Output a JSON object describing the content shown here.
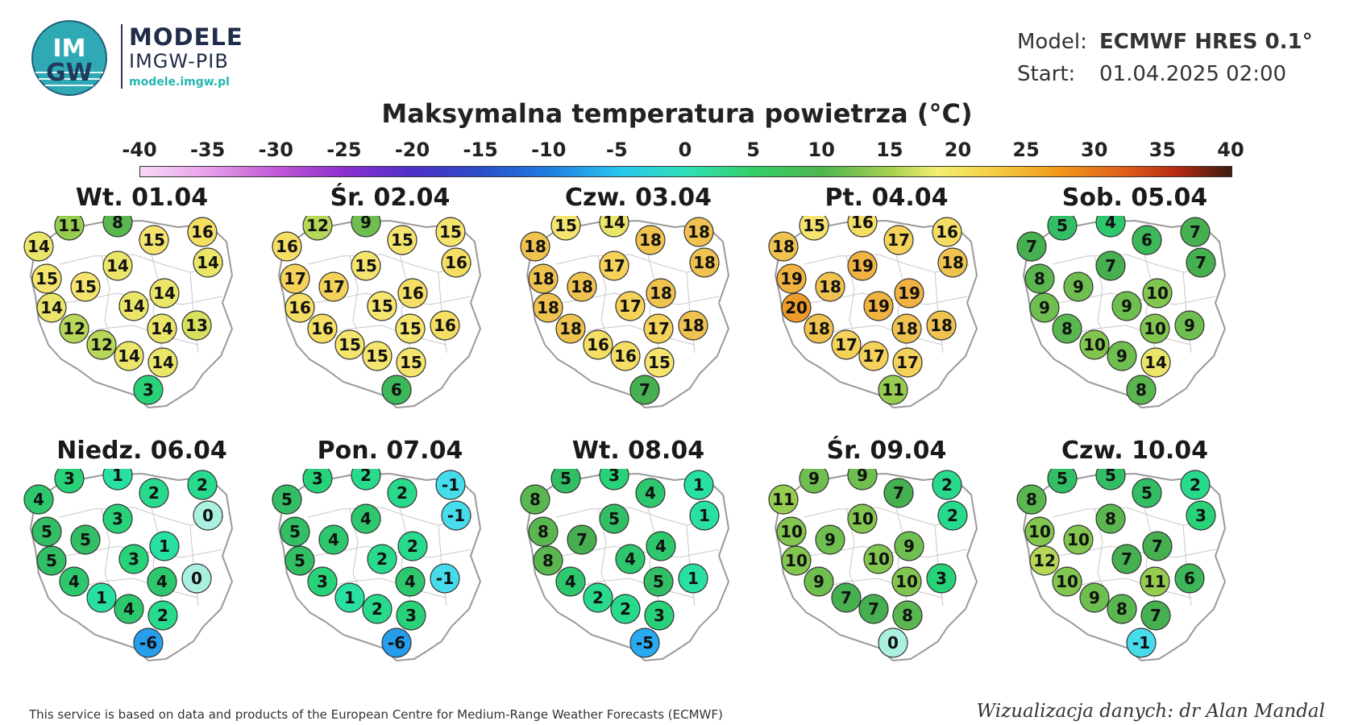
{
  "header": {
    "logo_text_top": "IM",
    "logo_text_bottom": "GW",
    "brand_title": "MODELE",
    "brand_sub": "IMGW-PIB",
    "brand_url": "modele.imgw.pl",
    "model_label": "Model:",
    "model_value": "ECMWF HRES 0.1°",
    "start_label": "Start:",
    "start_value": "01.04.2025 02:00"
  },
  "title": "Maksymalna temperatura powietrza (°C)",
  "scale": {
    "labels": [
      "-40",
      "-35",
      "-30",
      "-25",
      "-20",
      "-15",
      "-10",
      "-5",
      "0",
      "5",
      "10",
      "15",
      "20",
      "25",
      "30",
      "35",
      "40"
    ]
  },
  "days": [
    {
      "label": "Wt. 01.04",
      "values": [
        11,
        8,
        16,
        14,
        15,
        14,
        15,
        14,
        15,
        14,
        14,
        14,
        14,
        13,
        12,
        12,
        14,
        14,
        3
      ]
    },
    {
      "label": "Śr. 02.04",
      "values": [
        12,
        9,
        15,
        16,
        15,
        16,
        17,
        15,
        17,
        16,
        16,
        15,
        15,
        16,
        16,
        15,
        15,
        15,
        6
      ]
    },
    {
      "label": "Czw. 03.04",
      "values": [
        15,
        14,
        18,
        18,
        18,
        18,
        18,
        17,
        18,
        18,
        18,
        17,
        17,
        18,
        18,
        16,
        16,
        15,
        7
      ]
    },
    {
      "label": "Pt. 04.04",
      "values": [
        15,
        16,
        16,
        18,
        17,
        18,
        19,
        19,
        18,
        19,
        20,
        19,
        18,
        18,
        18,
        17,
        17,
        17,
        11
      ]
    },
    {
      "label": "Sob. 05.04",
      "values": [
        5,
        4,
        7,
        7,
        6,
        7,
        8,
        7,
        9,
        10,
        9,
        9,
        10,
        9,
        8,
        10,
        9,
        14,
        8
      ]
    },
    {
      "label": "Niedz. 06.04",
      "values": [
        3,
        1,
        2,
        4,
        2,
        0,
        5,
        3,
        5,
        1,
        5,
        3,
        4,
        0,
        4,
        1,
        4,
        2,
        -6
      ]
    },
    {
      "label": "Pon. 07.04",
      "values": [
        3,
        2,
        -1,
        5,
        2,
        -1,
        5,
        4,
        4,
        2,
        5,
        2,
        4,
        -1,
        3,
        1,
        2,
        3,
        -6
      ]
    },
    {
      "label": "Wt. 08.04",
      "values": [
        5,
        3,
        1,
        8,
        4,
        1,
        8,
        5,
        7,
        4,
        8,
        4,
        5,
        1,
        4,
        2,
        2,
        3,
        -5
      ]
    },
    {
      "label": "Śr. 09.04",
      "values": [
        9,
        9,
        2,
        11,
        7,
        2,
        10,
        10,
        9,
        9,
        10,
        10,
        10,
        3,
        9,
        7,
        7,
        8,
        0
      ]
    },
    {
      "label": "Czw. 10.04",
      "values": [
        5,
        5,
        2,
        8,
        5,
        3,
        10,
        8,
        10,
        7,
        12,
        7,
        11,
        6,
        10,
        9,
        8,
        7,
        -1
      ]
    }
  ],
  "footer": {
    "left": "This service is based on data and products of the European Centre for Medium-Range Weather Forecasts (ECMWF)",
    "right": "Wizualizacja danych: dr Alan Mandal"
  },
  "colors": {
    "brand_dark": "#1f2d4a",
    "brand_teal": "#25b7b0"
  }
}
